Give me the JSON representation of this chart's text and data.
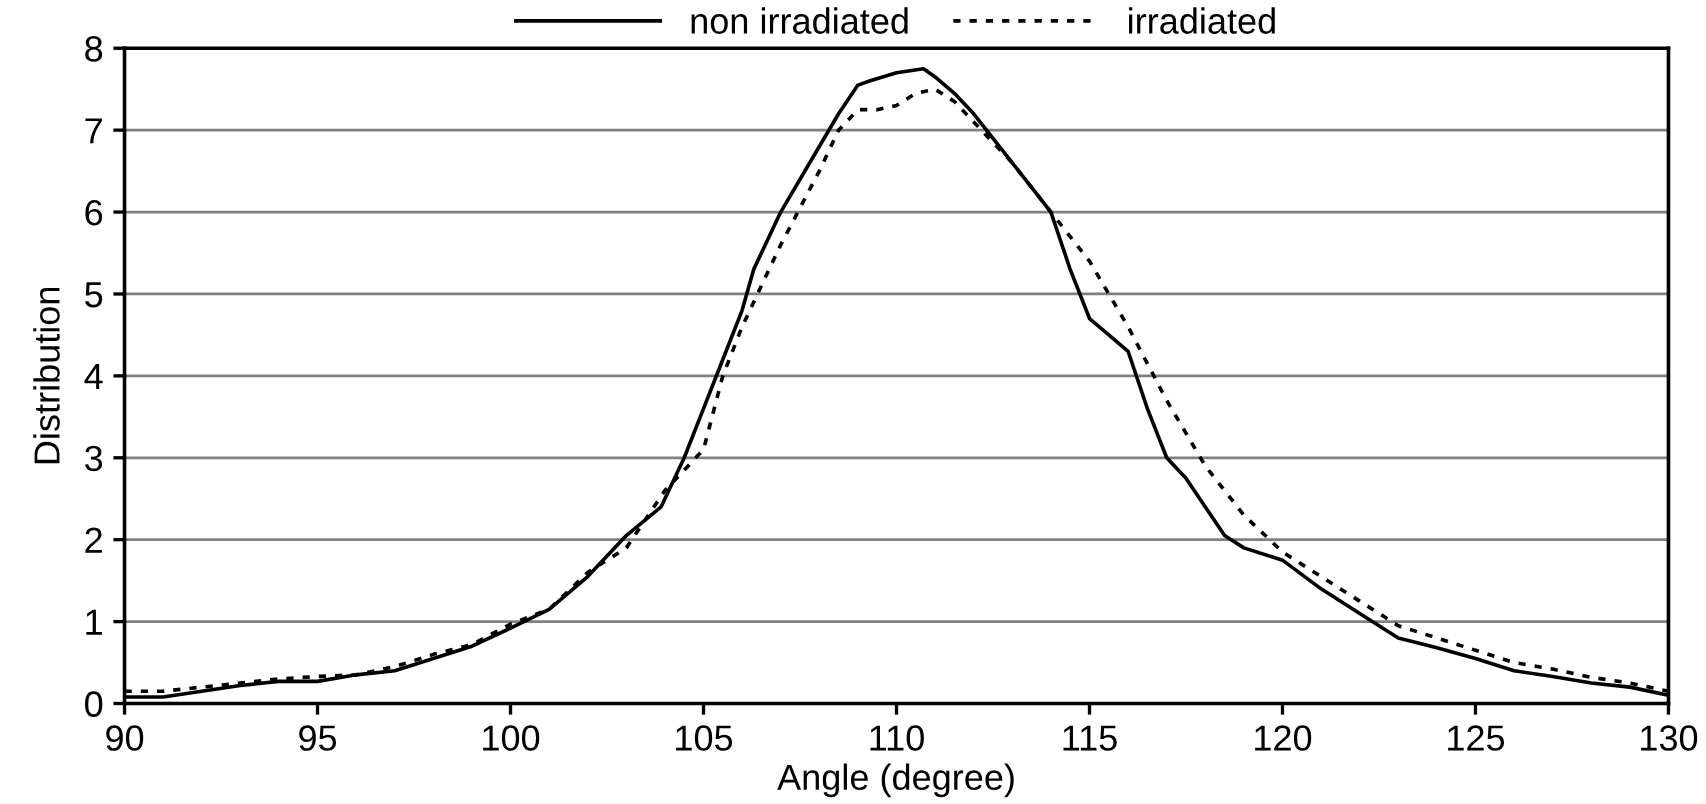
{
  "chart_data": {
    "type": "line",
    "xlabel": "Angle (degree)",
    "ylabel": "Distribution",
    "xlim": [
      90,
      130
    ],
    "ylim": [
      0,
      8
    ],
    "xticks": [
      90,
      95,
      100,
      105,
      110,
      115,
      120,
      125,
      130
    ],
    "yticks": [
      0,
      1,
      2,
      3,
      4,
      5,
      6,
      7,
      8
    ],
    "grid": "y",
    "legend": "top",
    "marker": "none",
    "series": [
      {
        "name": "non irradiated",
        "color": "#000000",
        "line_style": "solid",
        "x": [
          90,
          91,
          92,
          93,
          94,
          95,
          96,
          97,
          98,
          99,
          100,
          101,
          102,
          103,
          103.9,
          104.5,
          105,
          105.5,
          106,
          106.3,
          107,
          108,
          108.5,
          109,
          109.3,
          110,
          110.7,
          111,
          111.5,
          112,
          113,
          113.5,
          114,
          114.5,
          115,
          115.5,
          116,
          116.5,
          117,
          117.5,
          118,
          118.5,
          119,
          120,
          121,
          122,
          123,
          124,
          125,
          126,
          127,
          128,
          129,
          130
        ],
        "values": [
          0.08,
          0.08,
          0.15,
          0.22,
          0.27,
          0.27,
          0.35,
          0.4,
          0.55,
          0.7,
          0.92,
          1.15,
          1.55,
          2.05,
          2.4,
          3.0,
          3.6,
          4.2,
          4.8,
          5.3,
          6.0,
          6.8,
          7.2,
          7.55,
          7.6,
          7.7,
          7.75,
          7.65,
          7.45,
          7.2,
          6.6,
          6.3,
          6.0,
          5.3,
          4.7,
          4.5,
          4.3,
          3.6,
          3.0,
          2.75,
          2.4,
          2.05,
          1.9,
          1.75,
          1.4,
          1.1,
          0.8,
          0.68,
          0.55,
          0.4,
          0.33,
          0.25,
          0.2,
          0.1
        ]
      },
      {
        "name": "irradiated",
        "color": "#000000",
        "line_style": "dotted",
        "x": [
          90,
          91,
          92,
          93,
          94,
          95,
          96,
          97,
          98,
          99,
          100,
          101,
          102,
          103,
          104,
          104.5,
          105,
          105.5,
          106,
          106.5,
          107,
          108,
          108.5,
          109,
          109.5,
          110,
          110.5,
          111,
          111.5,
          112,
          113,
          114,
          115,
          116,
          117,
          118,
          119,
          120,
          121,
          122,
          123,
          124,
          125,
          126,
          127,
          128,
          129,
          130
        ],
        "values": [
          0.15,
          0.15,
          0.2,
          0.25,
          0.3,
          0.33,
          0.35,
          0.45,
          0.6,
          0.72,
          0.97,
          1.15,
          1.6,
          1.9,
          2.6,
          2.85,
          3.1,
          4.0,
          4.6,
          5.1,
          5.6,
          6.5,
          7.0,
          7.25,
          7.25,
          7.3,
          7.45,
          7.5,
          7.35,
          7.1,
          6.6,
          6.0,
          5.4,
          4.6,
          3.7,
          2.9,
          2.3,
          1.85,
          1.55,
          1.25,
          0.95,
          0.8,
          0.65,
          0.5,
          0.42,
          0.32,
          0.25,
          0.15
        ]
      }
    ]
  }
}
